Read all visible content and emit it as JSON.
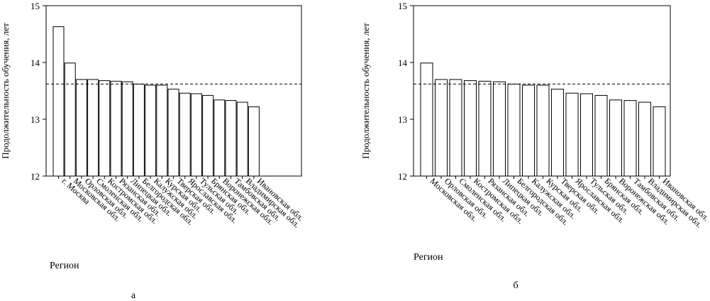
{
  "chart_data": [
    {
      "type": "bar",
      "panel_label": "а",
      "xlabel": "Регион",
      "ylabel": "Продолжительность обучения, лет",
      "ylim": [
        12,
        15
      ],
      "yticks": [
        12,
        13,
        14,
        15
      ],
      "reference_line": 13.62,
      "categories": [
        "г. Москва",
        "Московская обл.",
        "Орловская обл.",
        "Смоленская обл.",
        "Костромская обл.",
        "Рязанская обл.",
        "Липецкая обл.",
        "Белгородская обл.",
        "Калужская обл.",
        "Курская обл.",
        "Тверская обл.",
        "Ярославская обл.",
        "Тульская обл.",
        "Брянская обл.",
        "Воронежская обл.",
        "Тамбовская обл.",
        "Владимирская обл.",
        "Ивановская обл."
      ],
      "values": [
        14.63,
        13.99,
        13.7,
        13.7,
        13.68,
        13.67,
        13.66,
        13.62,
        13.6,
        13.6,
        13.53,
        13.46,
        13.45,
        13.42,
        13.34,
        13.33,
        13.3,
        13.22
      ]
    },
    {
      "type": "bar",
      "panel_label": "б",
      "xlabel": "Регион",
      "ylabel": "Продолжительность обучения, лет",
      "ylim": [
        12,
        15
      ],
      "yticks": [
        12,
        13,
        14,
        15
      ],
      "reference_line": 13.62,
      "categories": [
        "Московская обл.",
        "Орловская обл.",
        "Смоленская обл.",
        "Костромская обл.",
        "Рязанская обл.",
        "Липецкая обл.",
        "Белгородская обл.",
        "Калужская обл.",
        "Курская обл.",
        "Тверская обл.",
        "Ярославская обл.",
        "Тульская обл.",
        "Брянская обл.",
        "Воронежская обл.",
        "Тамбовская обл.",
        "Владимирская обл.",
        "Ивановская обл."
      ],
      "values": [
        13.99,
        13.7,
        13.7,
        13.68,
        13.67,
        13.66,
        13.62,
        13.6,
        13.6,
        13.53,
        13.46,
        13.45,
        13.42,
        13.34,
        13.33,
        13.3,
        13.22
      ]
    }
  ]
}
